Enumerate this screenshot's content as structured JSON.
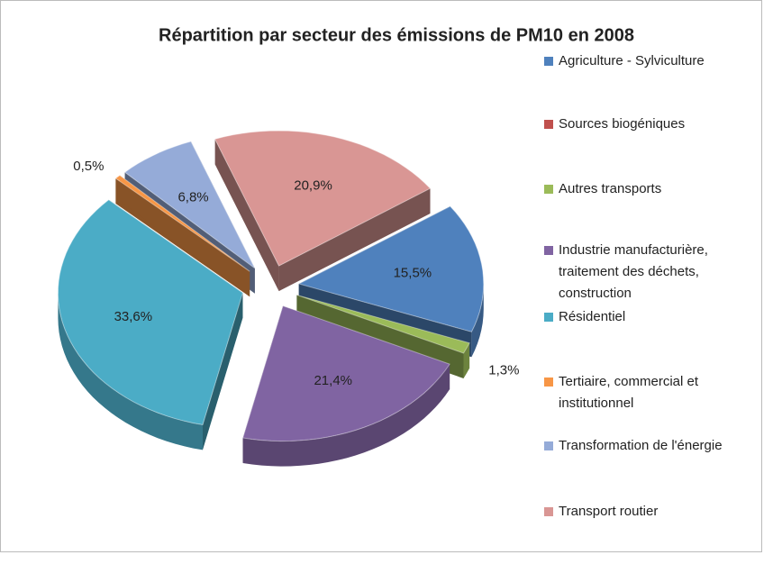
{
  "chart_data": {
    "type": "pie3d",
    "title": "Répartition par secteur des émissions de PM10 en 2008",
    "categories": [
      "Agriculture - Sylviculture",
      "Sources biogéniques",
      "Autres transports",
      "Industrie manufacturière, traitement des déchets, construction",
      "Résidentiel",
      "Tertiaire, commercial et institutionnel",
      "Transformation de l'énergie",
      "Transport routier"
    ],
    "values": [
      15.5,
      0,
      1.3,
      21.4,
      33.6,
      0.5,
      6.8,
      20.9
    ],
    "value_labels": [
      "15,5%",
      null,
      "1,3%",
      "21,4%",
      "33,6%",
      "0,5%",
      "6,8%",
      "20,9%"
    ],
    "colors": [
      "#4f81bd",
      "#c0504d",
      "#9bbb59",
      "#8064a2",
      "#4bacc6",
      "#f79646",
      "#95abd8",
      "#d99694"
    ],
    "legend": "right"
  }
}
